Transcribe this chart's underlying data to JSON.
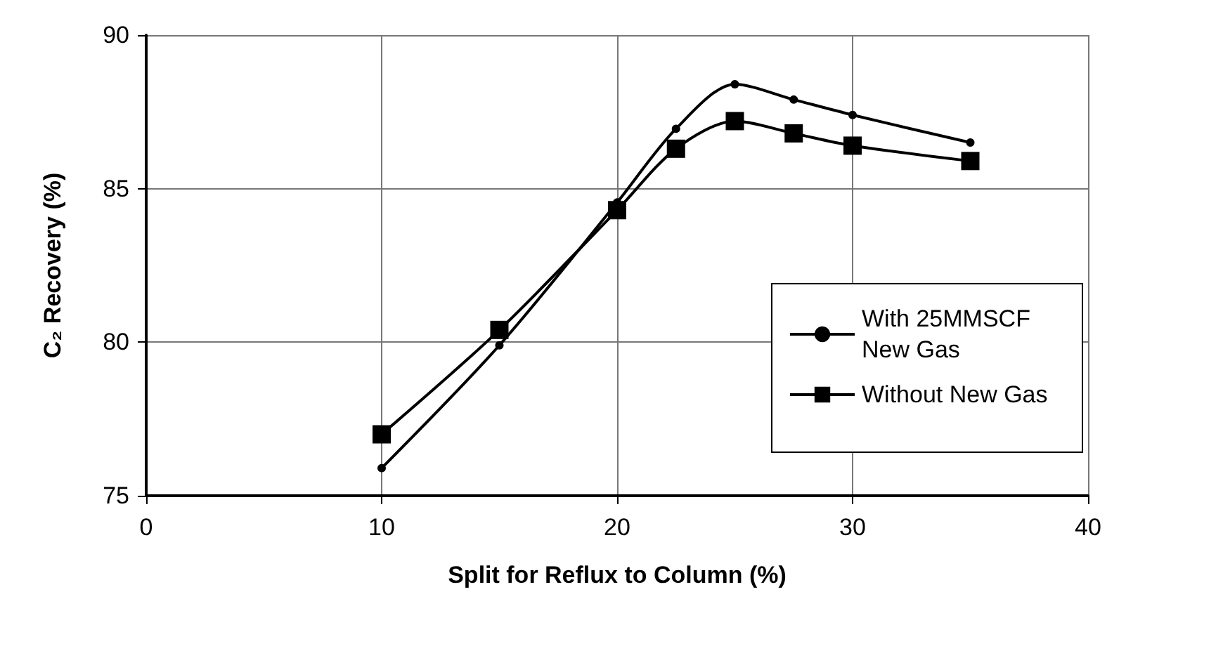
{
  "chart_data": {
    "type": "line",
    "xlabel": "Split for Reflux to Column (%)",
    "ylabel": "C₂ Recovery (%)",
    "x": [
      10,
      15,
      20,
      22.5,
      25,
      27.5,
      30,
      35
    ],
    "series": [
      {
        "name": "With 25MMSCF New Gas",
        "color": "#000000",
        "marker": "circle",
        "values": [
          75.9,
          79.9,
          84.55,
          86.95,
          88.4,
          87.9,
          87.4,
          86.5
        ]
      },
      {
        "name": "Without New Gas",
        "color": "#000000",
        "marker": "square",
        "values": [
          77.0,
          80.4,
          84.3,
          86.3,
          87.2,
          86.8,
          86.4,
          85.9
        ]
      }
    ],
    "xlim": [
      0,
      40
    ],
    "xticks": [
      0,
      10,
      20,
      30,
      40
    ],
    "ylim": [
      75,
      90
    ],
    "yticks": [
      75,
      80,
      85,
      90
    ],
    "grid": true,
    "legend": "bottom right",
    "line_style": "solid"
  }
}
